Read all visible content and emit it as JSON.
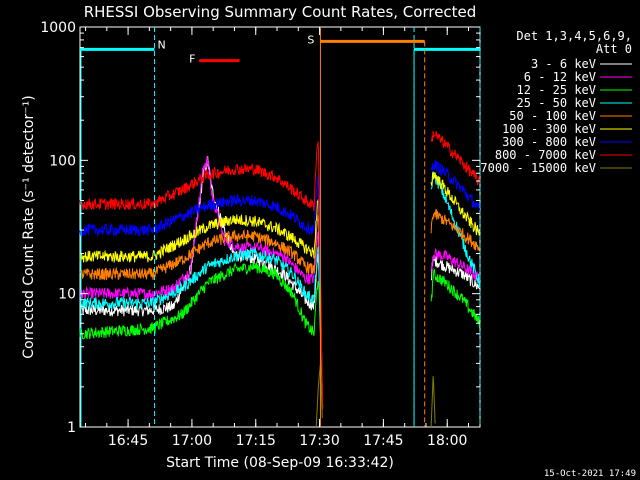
{
  "chart_data": {
    "type": "line",
    "title": "RHESSI Observing Summary Count Rates, Corrected",
    "xlabel": "Start Time (08-Sep-09 16:33:42)",
    "ylabel": "Corrected Count Rate (s⁻¹ detector⁻¹)",
    "y_scale": "log",
    "ylim": [
      1,
      1000
    ],
    "xlim_minutes_after_start": [
      0,
      94
    ],
    "y_ticks": [
      "1",
      "10",
      "100",
      "1000"
    ],
    "x_ticks": [
      "16:45",
      "17:00",
      "17:15",
      "17:30",
      "17:45",
      "18:00"
    ],
    "x_tick_minutes": [
      11.3,
      26.3,
      41.3,
      56.3,
      71.3,
      86.3
    ],
    "legend_title_line1": "Det 1,3,4,5,6,9,",
    "legend_title_line2": "Att 0",
    "timestamp": "15-Oct-2021 17:49",
    "series": [
      {
        "name": "3 - 6 keV",
        "color": "#ffffff",
        "profile": [
          [
            0,
            7.5
          ],
          [
            17,
            7.5
          ],
          [
            22,
            8
          ],
          [
            26,
            15
          ],
          [
            29,
            80
          ],
          [
            30,
            100
          ],
          [
            31,
            60
          ],
          [
            34,
            30
          ],
          [
            36,
            20
          ],
          [
            42,
            18
          ],
          [
            48,
            14
          ],
          [
            53,
            9
          ],
          [
            55,
            8
          ],
          [
            55.5,
            14
          ],
          [
            56,
            20
          ],
          [
            57,
            1.5
          ]
        ],
        "profile2": [
          [
            82.5,
            13
          ],
          [
            83,
            18
          ],
          [
            86,
            16
          ],
          [
            90,
            14
          ],
          [
            94,
            11
          ]
        ]
      },
      {
        "name": "6 - 12 keV",
        "color": "#ff00ff",
        "profile": [
          [
            0,
            10
          ],
          [
            17,
            10
          ],
          [
            22,
            11
          ],
          [
            26,
            15
          ],
          [
            29,
            90
          ],
          [
            30,
            100
          ],
          [
            31,
            55
          ],
          [
            34,
            25
          ],
          [
            38,
            22
          ],
          [
            42,
            22
          ],
          [
            48,
            19
          ],
          [
            53,
            13
          ],
          [
            55,
            13
          ],
          [
            55.5,
            20
          ],
          [
            56,
            30
          ],
          [
            57,
            1.5
          ]
        ],
        "profile2": [
          [
            82.5,
            15
          ],
          [
            83,
            20
          ],
          [
            86,
            19
          ],
          [
            90,
            16
          ],
          [
            94,
            13
          ]
        ]
      },
      {
        "name": "12 - 25 keV",
        "color": "#00ff00",
        "profile": [
          [
            0,
            5
          ],
          [
            17,
            5.5
          ],
          [
            24,
            7
          ],
          [
            30,
            12
          ],
          [
            36,
            15
          ],
          [
            41,
            16
          ],
          [
            46,
            14
          ],
          [
            50,
            10
          ],
          [
            53,
            6
          ],
          [
            55,
            5
          ],
          [
            55.5,
            9
          ],
          [
            56,
            14
          ],
          [
            57,
            1.5
          ]
        ],
        "profile2": [
          [
            82.5,
            8
          ],
          [
            83,
            14
          ],
          [
            86,
            12
          ],
          [
            90,
            9
          ],
          [
            94,
            6
          ]
        ]
      },
      {
        "name": "25 - 50 keV",
        "color": "#00ffff",
        "profile": [
          [
            0,
            8.5
          ],
          [
            17,
            8.5
          ],
          [
            24,
            11
          ],
          [
            30,
            16
          ],
          [
            36,
            19
          ],
          [
            41,
            20
          ],
          [
            46,
            18
          ],
          [
            50,
            14
          ],
          [
            53,
            10
          ],
          [
            55,
            9
          ],
          [
            55.5,
            15
          ],
          [
            56,
            22
          ],
          [
            57,
            1.5
          ]
        ],
        "profile2": [
          [
            82.5,
            60
          ],
          [
            83,
            80
          ],
          [
            85,
            60
          ],
          [
            88,
            35
          ],
          [
            91,
            20
          ],
          [
            94,
            12
          ]
        ]
      },
      {
        "name": "50 - 100 keV",
        "color": "#ff8000",
        "profile": [
          [
            0,
            14
          ],
          [
            17,
            14
          ],
          [
            24,
            18
          ],
          [
            30,
            24
          ],
          [
            36,
            27
          ],
          [
            41,
            27
          ],
          [
            46,
            24
          ],
          [
            50,
            20
          ],
          [
            53,
            16
          ],
          [
            55,
            15
          ],
          [
            55.5,
            25
          ],
          [
            56,
            40
          ],
          [
            57,
            1.5
          ]
        ],
        "profile2": [
          [
            82.5,
            30
          ],
          [
            83,
            40
          ],
          [
            86,
            35
          ],
          [
            90,
            28
          ],
          [
            94,
            22
          ]
        ]
      },
      {
        "name": "100 - 300 keV",
        "color": "#ffff00",
        "profile": [
          [
            0,
            19
          ],
          [
            17,
            19
          ],
          [
            24,
            25
          ],
          [
            30,
            32
          ],
          [
            36,
            36
          ],
          [
            41,
            35
          ],
          [
            46,
            31
          ],
          [
            50,
            26
          ],
          [
            53,
            22
          ],
          [
            55,
            20
          ],
          [
            55.5,
            35
          ],
          [
            56,
            55
          ],
          [
            57,
            1.5
          ]
        ],
        "profile2": [
          [
            82.5,
            65
          ],
          [
            83,
            80
          ],
          [
            86,
            60
          ],
          [
            90,
            40
          ],
          [
            94,
            28
          ]
        ]
      },
      {
        "name": "300 - 800 keV",
        "color": "#0000ff",
        "profile": [
          [
            0,
            30
          ],
          [
            17,
            30
          ],
          [
            24,
            38
          ],
          [
            30,
            46
          ],
          [
            36,
            50
          ],
          [
            41,
            50
          ],
          [
            46,
            45
          ],
          [
            50,
            38
          ],
          [
            53,
            32
          ],
          [
            55,
            30
          ],
          [
            55.5,
            50
          ],
          [
            56,
            75
          ],
          [
            57,
            1.5
          ]
        ],
        "profile2": [
          [
            82.5,
            80
          ],
          [
            83,
            95
          ],
          [
            86,
            80
          ],
          [
            90,
            60
          ],
          [
            94,
            42
          ]
        ]
      },
      {
        "name": "800 - 7000 keV",
        "color": "#ff0000",
        "profile": [
          [
            0,
            47
          ],
          [
            17,
            47
          ],
          [
            24,
            60
          ],
          [
            30,
            78
          ],
          [
            36,
            86
          ],
          [
            41,
            86
          ],
          [
            46,
            75
          ],
          [
            50,
            60
          ],
          [
            53,
            50
          ],
          [
            55,
            45
          ],
          [
            55.5,
            100
          ],
          [
            56,
            150
          ],
          [
            57,
            1.5
          ]
        ],
        "profile2": [
          [
            82.5,
            130
          ],
          [
            83,
            160
          ],
          [
            86,
            130
          ],
          [
            90,
            95
          ],
          [
            94,
            68
          ]
        ]
      },
      {
        "name": "7000 - 15000 keV",
        "color": "#808000",
        "profile": [
          [
            55.5,
            1
          ],
          [
            56,
            2
          ],
          [
            56.5,
            3
          ],
          [
            57,
            1
          ]
        ],
        "profile2": [
          [
            82.5,
            1
          ],
          [
            83,
            2.5
          ],
          [
            83.5,
            1
          ]
        ]
      }
    ],
    "annotations": {
      "N": {
        "label": "N",
        "color": "#00ffff",
        "bars_minutes": [
          [
            0,
            17.5
          ],
          [
            78.5,
            94
          ]
        ],
        "level": 680,
        "vlines_minutes": [
          17.5,
          78.5,
          94
        ]
      },
      "F": {
        "label": "F",
        "color": "#ff0000",
        "bar_minutes": [
          28,
          37.5
        ],
        "level": 560
      },
      "S": {
        "label": "S",
        "color": "#ff8000",
        "bar_minutes": [
          56.5,
          81
        ],
        "level": 780,
        "vlines_minutes": [
          56.5,
          81
        ]
      }
    }
  }
}
